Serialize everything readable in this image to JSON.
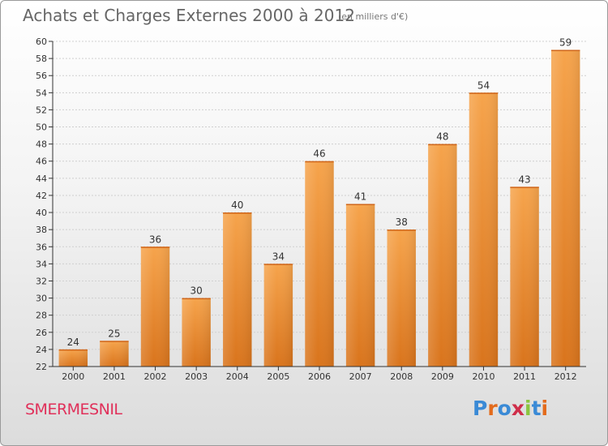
{
  "header": {
    "title": "Achats et Charges Externes 2000 à 2012",
    "subtitle": "(en milliers d'€)"
  },
  "footer": {
    "municipality": "SMERMESNIL",
    "logo": "Proxiti",
    "logo_colors": [
      "#3a8ad6",
      "#e36b1c",
      "#3a8ad6",
      "#cf2e4a",
      "#8bc53f",
      "#3a8ad6",
      "#e36b1c"
    ]
  },
  "colors": {
    "bar_top": "#f6a44c",
    "bar_bottom": "#d9741c",
    "axis": "#333333",
    "grid": "#cfcfcf",
    "title": "#666666"
  },
  "chart_data": {
    "type": "bar",
    "categories": [
      "2000",
      "2001",
      "2002",
      "2003",
      "2004",
      "2005",
      "2006",
      "2007",
      "2008",
      "2009",
      "2010",
      "2011",
      "2012"
    ],
    "values": [
      24,
      25,
      36,
      30,
      40,
      34,
      46,
      41,
      38,
      48,
      54,
      43,
      59
    ],
    "ylim": [
      22,
      60
    ],
    "ytick_step": 2,
    "grid": true,
    "data_labels": true
  }
}
